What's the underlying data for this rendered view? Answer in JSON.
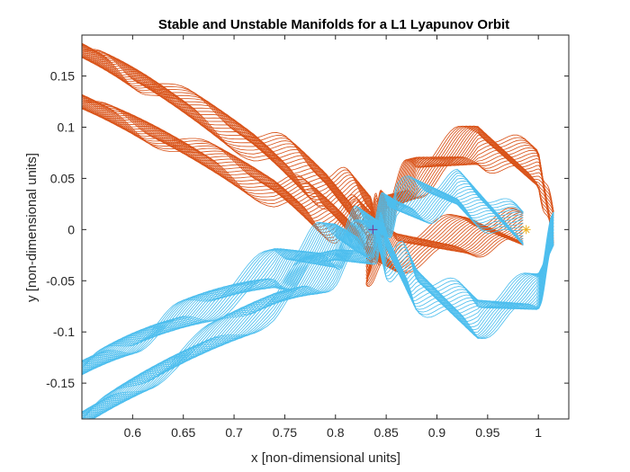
{
  "chart_data": {
    "type": "line",
    "title": "Stable and Unstable Manifolds for a L1 Lyapunov Orbit",
    "xlabel": "x [non-dimensional units]",
    "ylabel": "y [non-dimensional units]",
    "xlim": [
      0.55,
      1.03
    ],
    "ylim": [
      -0.185,
      0.19
    ],
    "xticks": [
      0.6,
      0.65,
      0.7,
      0.75,
      0.8,
      0.85,
      0.9,
      0.95,
      1
    ],
    "xtick_labels": [
      "0.6",
      "0.65",
      "0.7",
      "0.75",
      "0.8",
      "0.85",
      "0.9",
      "0.95",
      "1"
    ],
    "yticks": [
      0.15,
      0.1,
      0.05,
      0,
      -0.05,
      -0.1,
      -0.15
    ],
    "ytick_labels": [
      "0.15",
      "0.1",
      "0.05",
      "0",
      "-0.05",
      "-0.1",
      "-0.15"
    ],
    "grid": false,
    "legend": "none",
    "series": [
      {
        "color": "#D95319",
        "trajectories": 24,
        "path": [
          [
            0.55,
            0.175
          ],
          [
            0.62,
            0.14
          ],
          [
            0.72,
            0.085
          ],
          [
            0.79,
            0.045
          ],
          [
            0.835,
            0.018
          ],
          [
            0.845,
            -0.005
          ],
          [
            0.83,
            -0.03
          ],
          [
            0.86,
            -0.02
          ],
          [
            0.93,
            -0.005
          ],
          [
            0.985,
            0.0
          ]
        ]
      },
      {
        "color": "#D95319",
        "trajectories": 24,
        "path": [
          [
            0.55,
            0.125
          ],
          [
            0.64,
            0.085
          ],
          [
            0.74,
            0.04
          ],
          [
            0.8,
            0.012
          ],
          [
            0.838,
            0.0
          ],
          [
            0.85,
            0.018
          ],
          [
            0.88,
            0.055
          ],
          [
            0.94,
            0.085
          ],
          [
            1.0,
            0.06
          ],
          [
            1.015,
            0.0
          ]
        ]
      },
      {
        "color": "#4DBEEE",
        "trajectories": 24,
        "path": [
          [
            0.55,
            -0.135
          ],
          [
            0.64,
            -0.09
          ],
          [
            0.74,
            -0.04
          ],
          [
            0.8,
            -0.012
          ],
          [
            0.838,
            0.0
          ],
          [
            0.86,
            0.025
          ],
          [
            0.92,
            0.035
          ],
          [
            0.985,
            0.0
          ]
        ]
      },
      {
        "color": "#4DBEEE",
        "trajectories": 24,
        "path": [
          [
            0.55,
            -0.185
          ],
          [
            0.64,
            -0.13
          ],
          [
            0.74,
            -0.07
          ],
          [
            0.8,
            -0.03
          ],
          [
            0.84,
            -0.005
          ],
          [
            0.85,
            -0.02
          ],
          [
            0.88,
            -0.055
          ],
          [
            0.94,
            -0.085
          ],
          [
            1.0,
            -0.06
          ],
          [
            1.015,
            0.0
          ]
        ]
      }
    ],
    "markers": [
      {
        "symbol": "*",
        "x": 0.988,
        "y": 0.0,
        "color": "#EDB120"
      },
      {
        "symbol": "+",
        "x": 0.8369,
        "y": 0.0,
        "color": "#7E2F8E"
      }
    ]
  }
}
